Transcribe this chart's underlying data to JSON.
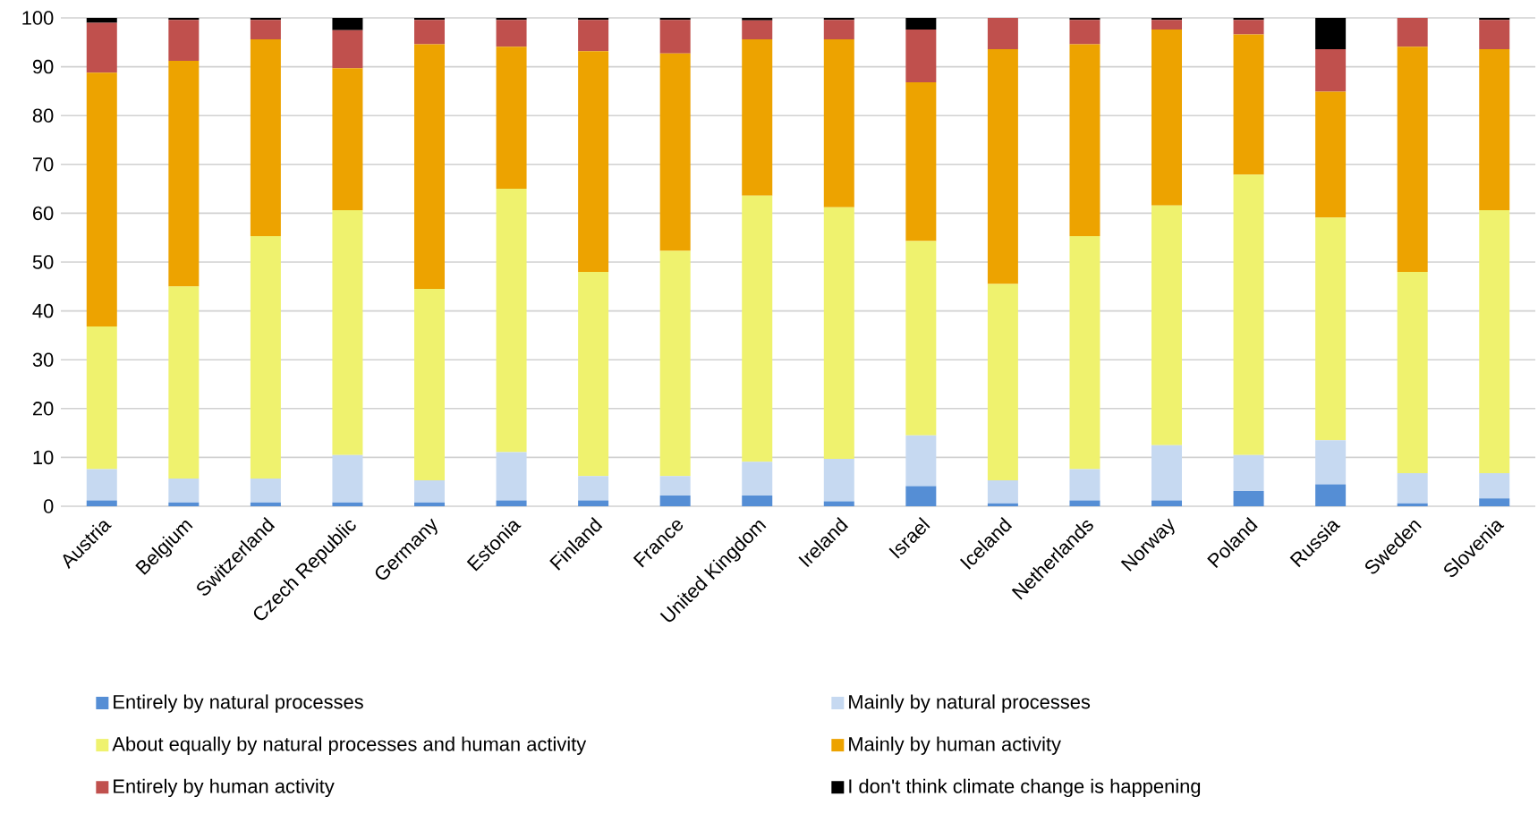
{
  "chart_data": {
    "type": "bar",
    "stacked": true,
    "legend": "bottom",
    "grid": "y",
    "categories": [
      "Austria",
      "Belgium",
      "Switzerland",
      "Czech Republic",
      "Germany",
      "Estonia",
      "Finland",
      "France",
      "United Kingdom",
      "Ireland",
      "Israel",
      "Iceland",
      "Netherlands",
      "Norway",
      "Poland",
      "Russia",
      "Sweden",
      "Slovenia"
    ],
    "ylim": [
      0,
      100
    ],
    "yticks": [
      0,
      10,
      20,
      30,
      40,
      50,
      60,
      70,
      80,
      90,
      100
    ],
    "series": [
      {
        "name": "Entirely by natural processes",
        "color": "#558ed5",
        "values": [
          1.2,
          0.8,
          0.8,
          0.8,
          0.8,
          1.2,
          1.2,
          2.2,
          2.2,
          1.0,
          4.1,
          0.6,
          1.2,
          1.2,
          3.1,
          4.5,
          0.6,
          1.6
        ]
      },
      {
        "name": "Mainly by natural processes",
        "color": "#c6d9f1",
        "values": [
          6.4,
          4.9,
          4.9,
          9.7,
          4.5,
          9.9,
          5.0,
          4.0,
          6.9,
          8.7,
          10.4,
          4.7,
          6.4,
          11.3,
          7.4,
          9.0,
          6.2,
          5.2
        ]
      },
      {
        "name": "About equally by natural processes and human activity",
        "color": "#eff26e",
        "values": [
          29.2,
          39.3,
          49.6,
          50.1,
          39.2,
          53.9,
          41.8,
          46.1,
          54.5,
          51.5,
          39.8,
          40.2,
          47.7,
          49.1,
          57.4,
          45.6,
          41.2,
          53.8
        ]
      },
      {
        "name": "Mainly by human activity",
        "color": "#eda300",
        "values": [
          52.0,
          46.2,
          40.3,
          29.1,
          50.1,
          29.1,
          45.2,
          40.4,
          32.0,
          34.4,
          32.5,
          48.1,
          39.3,
          36.0,
          28.7,
          25.8,
          46.1,
          33.0
        ]
      },
      {
        "name": "Entirely by human activity",
        "color": "#c0504d",
        "values": [
          10.2,
          8.4,
          4.0,
          7.8,
          5.0,
          5.5,
          6.4,
          6.9,
          3.9,
          4.0,
          10.8,
          6.4,
          5.0,
          2.0,
          3.0,
          8.7,
          5.9,
          6.0
        ]
      },
      {
        "name": "I don't think climate change is happening",
        "color": "#000000",
        "values": [
          1.0,
          0.4,
          0.4,
          2.5,
          0.4,
          0.4,
          0.4,
          0.4,
          0.5,
          0.4,
          2.4,
          0,
          0.4,
          0.4,
          0.4,
          6.4,
          0,
          0.4
        ]
      }
    ]
  }
}
